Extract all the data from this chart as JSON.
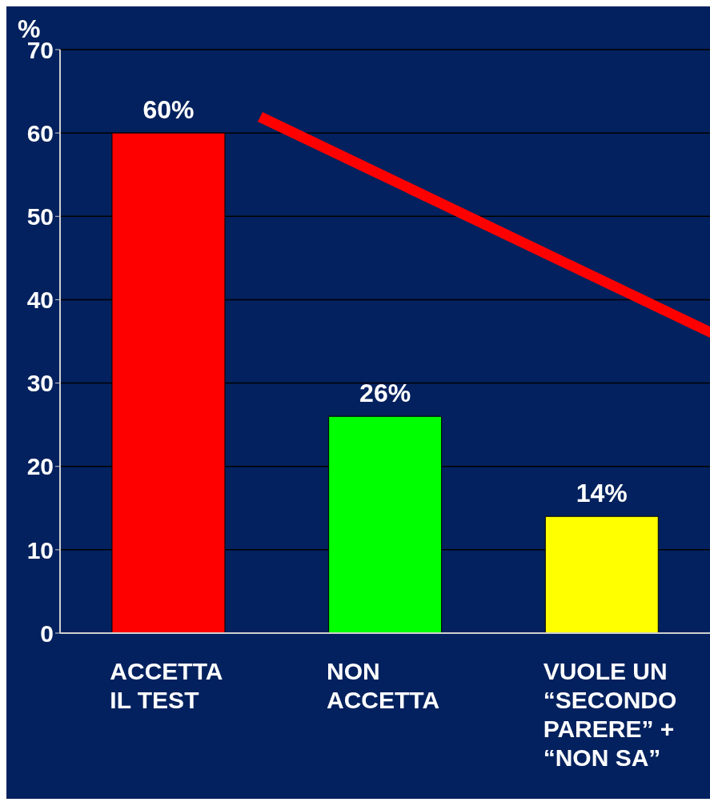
{
  "chart_data": {
    "type": "bar",
    "ylabel": "%",
    "categories": [
      "ACCETTA IL TEST",
      "NON ACCETTA",
      "VUOLE UN “SECONDO PARERE” + “NON SA”"
    ],
    "values": [
      60,
      26,
      14
    ],
    "colors": [
      "#ff0000",
      "#00ff00",
      "#ffff00"
    ],
    "value_labels": [
      "60%",
      "26%",
      "14%"
    ],
    "ylim": [
      0,
      70
    ],
    "yticks": [
      0,
      10,
      20,
      30,
      40,
      50,
      60,
      70
    ],
    "grid": "y",
    "legend": false
  }
}
